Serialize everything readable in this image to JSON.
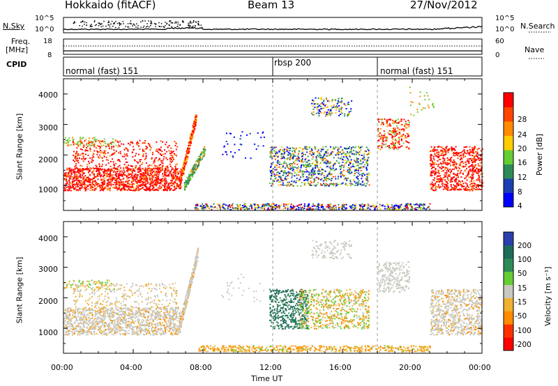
{
  "header": {
    "radar": "Hokkaido (fitACF)",
    "beam": "Beam 13",
    "date": "27/Nov/2012"
  },
  "top_panels": {
    "nsky_label": "N.Sky",
    "nsky_ticks": [
      "10^5",
      "10^0"
    ],
    "nsearch_label": "N.Search",
    "freq_label_1": "Freq.",
    "freq_label_2": "[MHz]",
    "freq_ticks": [
      "18",
      "8"
    ],
    "nave_label": "Nave",
    "nave_ticks": [
      "60",
      "0"
    ],
    "cpid_label": "CPID",
    "cpid_segments": [
      {
        "label": "normal (fast) 151",
        "start_ut": 0
      },
      {
        "label": "rbsp 200",
        "start_ut": 12
      },
      {
        "label": "normal (fast) 151",
        "start_ut": 18
      }
    ]
  },
  "chart_data": [
    {
      "type": "heatmap",
      "name": "Power",
      "ylabel": "Slant Range [km]",
      "yticks": [
        "1000",
        "2000",
        "3000",
        "4000"
      ],
      "ylim": [
        180,
        4500
      ],
      "xlim": [
        0,
        24
      ],
      "colorbar_label": "Power [dB]",
      "colorbar_ticks": [
        "4",
        "8",
        "12",
        "16",
        "20",
        "24",
        "28"
      ],
      "colorbar_colors": [
        "#0000ff",
        "#1a3fb0",
        "#2e8b57",
        "#66cc33",
        "#ffcc00",
        "#ff8c00",
        "#ff4500",
        "#ff0000"
      ]
    },
    {
      "type": "heatmap",
      "name": "Velocity",
      "ylabel": "Slant Range [km]",
      "yticks": [
        "1000",
        "2000",
        "3000",
        "4000"
      ],
      "ylim": [
        180,
        4500
      ],
      "xlim": [
        0,
        24
      ],
      "xlabel": "Time UT",
      "xticks": [
        "00:00",
        "04:00",
        "08:00",
        "12:00",
        "16:00",
        "20:00",
        "00:00"
      ],
      "colorbar_label": "Velocity [m s⁻¹]",
      "colorbar_ticks": [
        "200",
        "100",
        "50",
        "15",
        "-15",
        "-50",
        "-100",
        "-200"
      ],
      "colorbar_colors": [
        "#2b3fae",
        "#1f6b5a",
        "#2e8b57",
        "#66cc33",
        "#c8c8c0",
        "#f0b030",
        "#ff8c00",
        "#ff3000",
        "#ff0000"
      ]
    }
  ]
}
